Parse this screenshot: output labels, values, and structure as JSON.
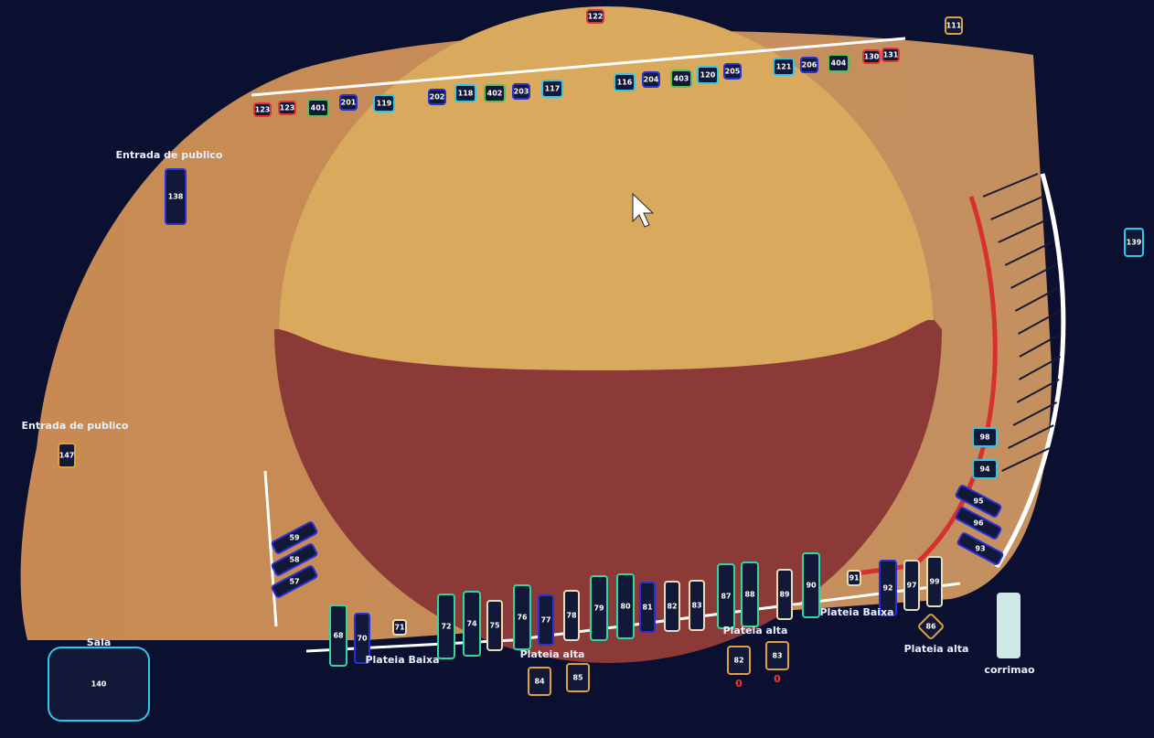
{
  "labels": [
    "Entrada de publico",
    "Entrada de publico",
    "Sala",
    "Plateia Baixa",
    "Plateia alta",
    "Plateia alta",
    "Plateia Baixa",
    "Plateia alta",
    "corrimao"
  ],
  "counters": [
    "0",
    "0"
  ],
  "fixtures": [
    {
      "label": "122",
      "color": "#e03434"
    },
    {
      "label": "111",
      "color": "#e0a040"
    },
    {
      "label": "123",
      "color": "#e03434"
    },
    {
      "label": "123",
      "color": "#e03434"
    },
    {
      "label": "401",
      "color": "#58c050"
    },
    {
      "label": "201",
      "color": "#2830d8"
    },
    {
      "label": "119",
      "color": "#30c8e8"
    },
    {
      "label": "202",
      "color": "#2830d8"
    },
    {
      "label": "118",
      "color": "#30c8e8"
    },
    {
      "label": "402",
      "color": "#58c050"
    },
    {
      "label": "203",
      "color": "#2830d8"
    },
    {
      "label": "117",
      "color": "#30c8e8"
    },
    {
      "label": "116",
      "color": "#30c8e8"
    },
    {
      "label": "204",
      "color": "#2830d8"
    },
    {
      "label": "403",
      "color": "#58c050"
    },
    {
      "label": "120",
      "color": "#30c8e8"
    },
    {
      "label": "205",
      "color": "#2830d8"
    },
    {
      "label": "121",
      "color": "#30c8e8"
    },
    {
      "label": "206",
      "color": "#2830d8"
    },
    {
      "label": "404",
      "color": "#58c050"
    },
    {
      "label": "130",
      "color": "#e03434"
    },
    {
      "label": "131",
      "color": "#e03434"
    },
    {
      "label": "138",
      "color": "#2830d8"
    },
    {
      "label": "147",
      "color": "#e0a040"
    },
    {
      "label": "59",
      "color": "#2830d8"
    },
    {
      "label": "58",
      "color": "#2830d8"
    },
    {
      "label": "57",
      "color": "#2830d8"
    },
    {
      "label": "140",
      "color": "#30c8e8"
    },
    {
      "label": "139",
      "color": "#30c8e8"
    },
    {
      "label": "98",
      "color": "#30c8e8"
    },
    {
      "label": "94",
      "color": "#30c8e8"
    },
    {
      "label": "95",
      "color": "#2830d8"
    },
    {
      "label": "96",
      "color": "#2830d8"
    },
    {
      "label": "93",
      "color": "#2830d8"
    },
    {
      "label": "68",
      "color": "#30d8a0"
    },
    {
      "label": "70",
      "color": "#2830d8"
    },
    {
      "label": "71",
      "color": "#e8dcb8"
    },
    {
      "label": "72",
      "color": "#30d8a0"
    },
    {
      "label": "74",
      "color": "#30d8a0"
    },
    {
      "label": "75",
      "color": "#e8dcb8"
    },
    {
      "label": "76",
      "color": "#30d8a0"
    },
    {
      "label": "77",
      "color": "#2830d8"
    },
    {
      "label": "78",
      "color": "#e8dcb8"
    },
    {
      "label": "79",
      "color": "#30d8a0"
    },
    {
      "label": "80",
      "color": "#30d8a0"
    },
    {
      "label": "81",
      "color": "#2830d8"
    },
    {
      "label": "82",
      "color": "#e8dcb8"
    },
    {
      "label": "83",
      "color": "#e8dcb8"
    },
    {
      "label": "87",
      "color": "#30d8a0"
    },
    {
      "label": "88",
      "color": "#30d8a0"
    },
    {
      "label": "89",
      "color": "#e8dcb8"
    },
    {
      "label": "90",
      "color": "#30d8a0"
    },
    {
      "label": "91",
      "color": "#e8dcb8"
    },
    {
      "label": "92",
      "color": "#2830d8"
    },
    {
      "label": "97",
      "color": "#e8dcb8"
    },
    {
      "label": "99",
      "color": "#e8dcb8"
    },
    {
      "label": "84",
      "color": "#e0a040"
    },
    {
      "label": "85",
      "color": "#e0a040"
    },
    {
      "label": "82",
      "color": "#e0a040"
    },
    {
      "label": "83",
      "color": "#e0a040"
    },
    {
      "label": "86",
      "color": "#e0a040"
    }
  ]
}
